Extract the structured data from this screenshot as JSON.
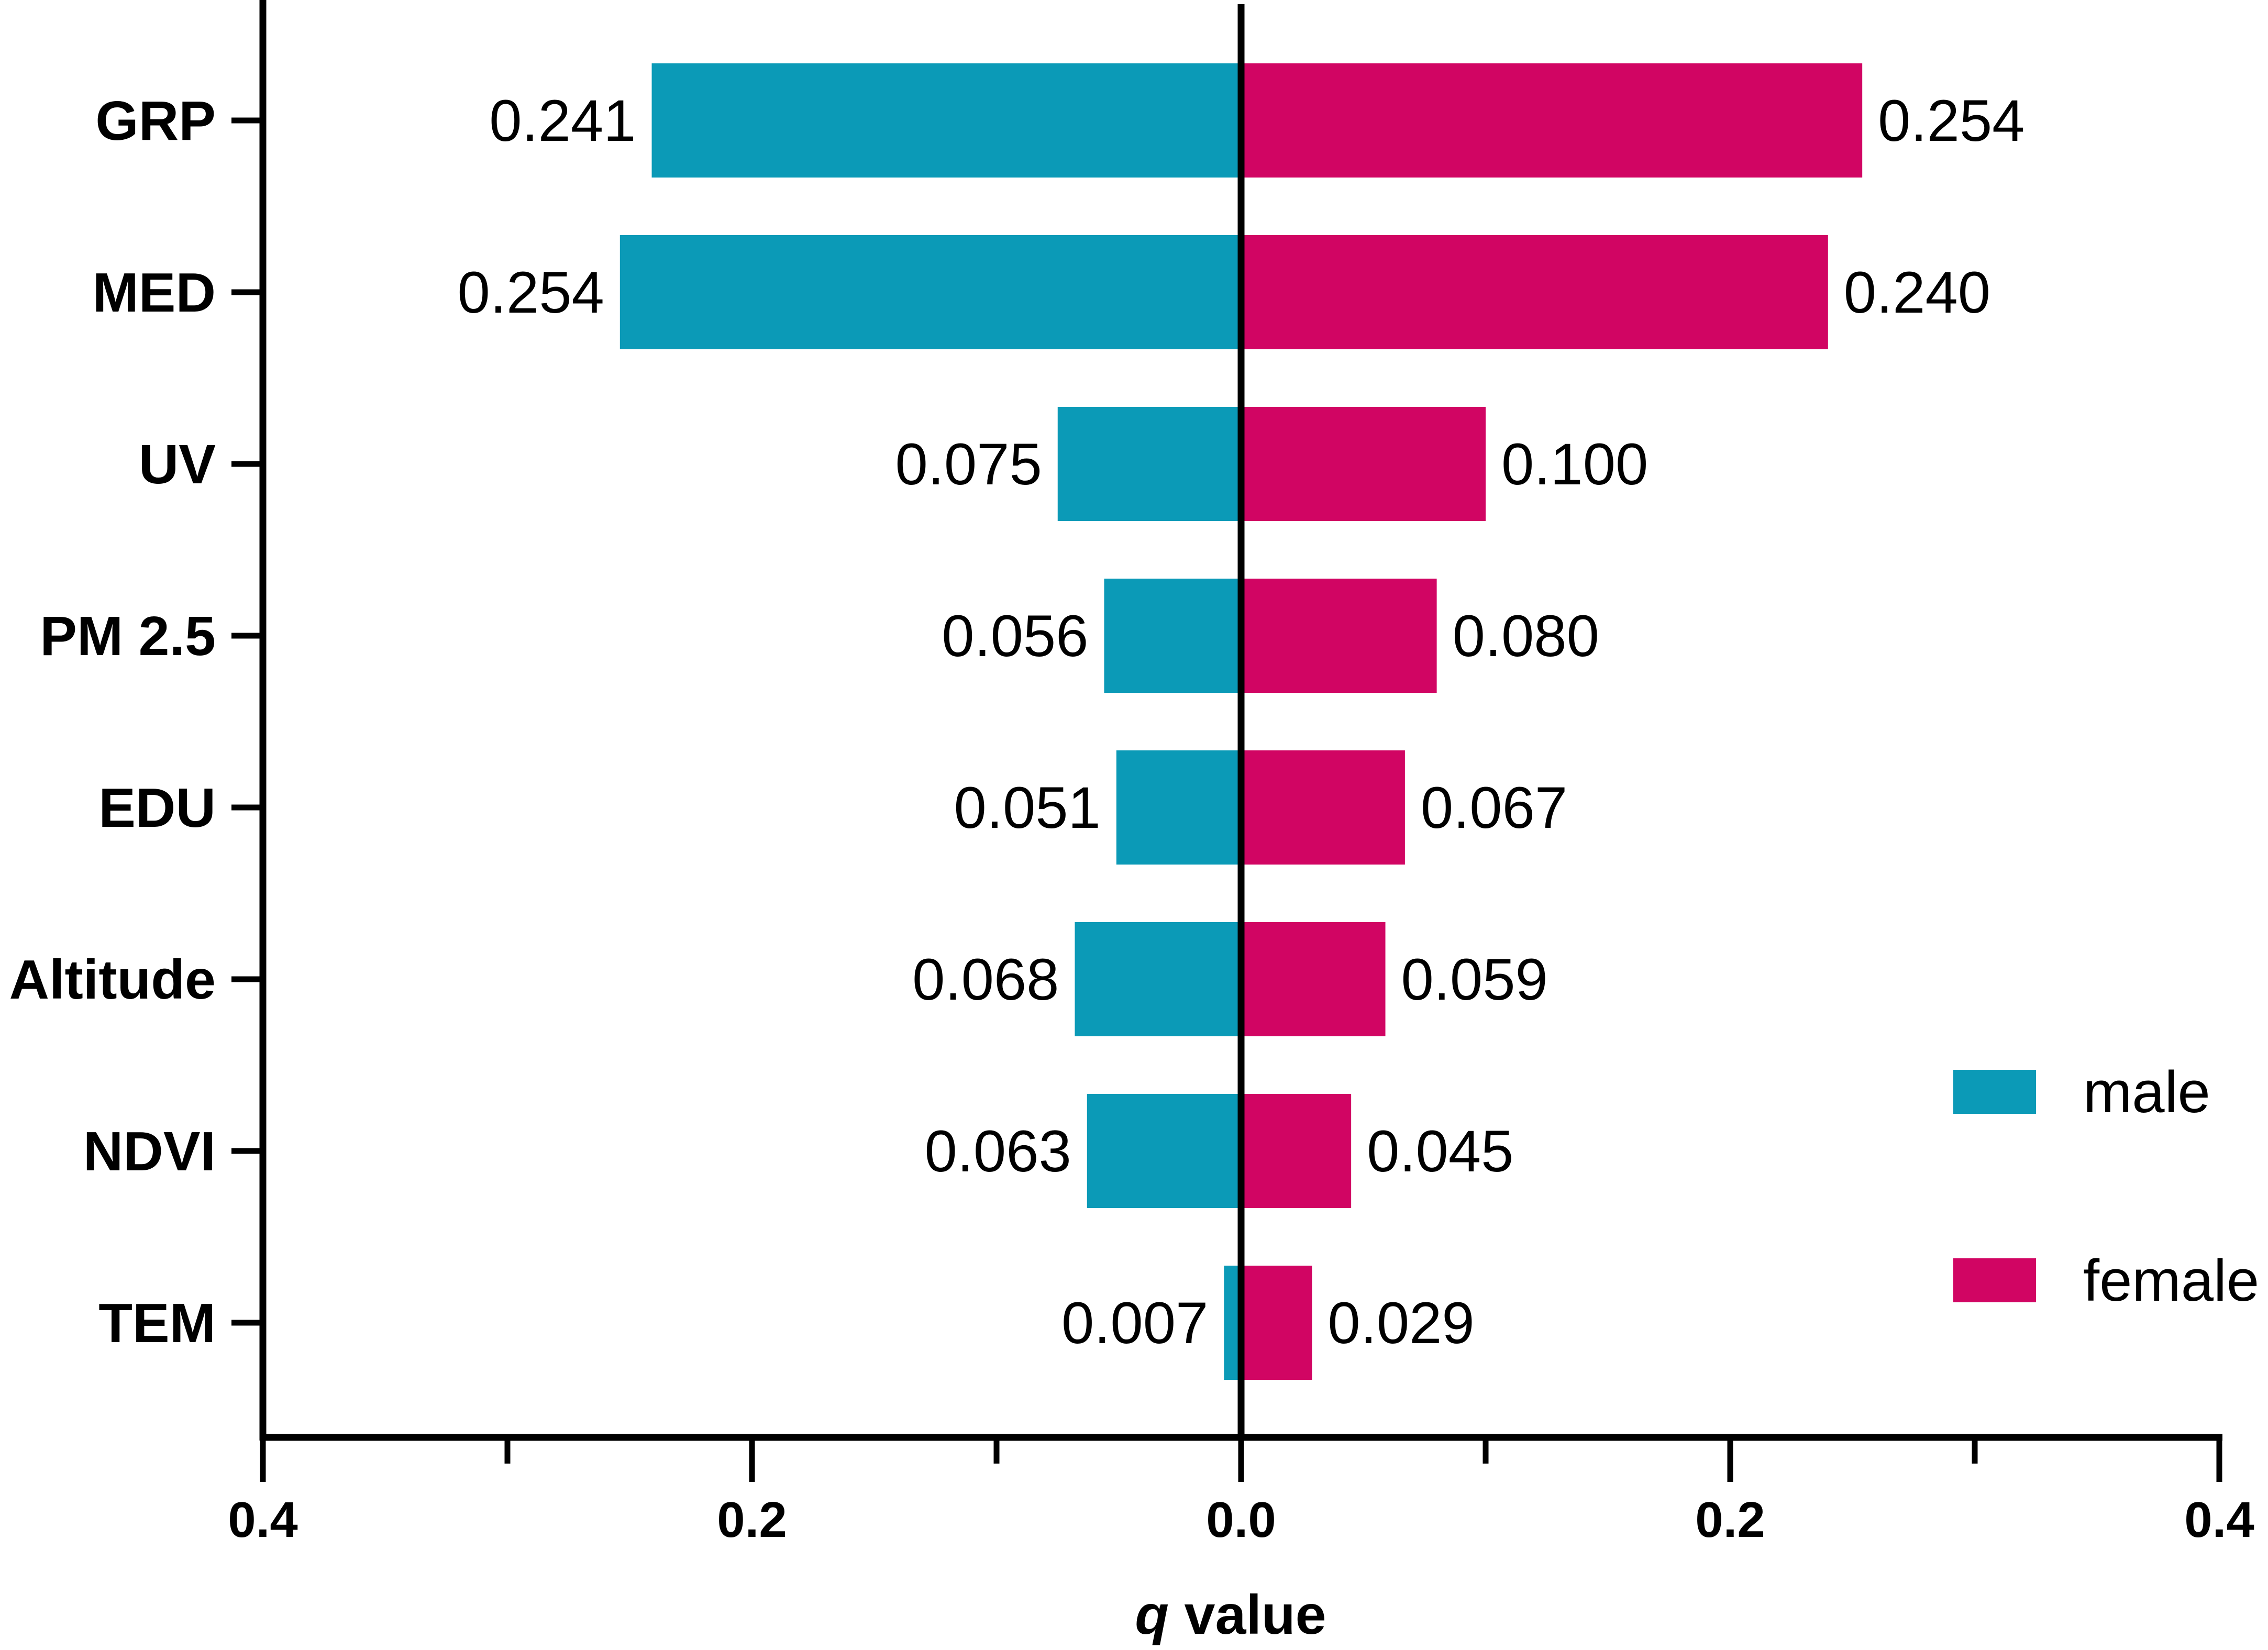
{
  "chart_data": {
    "type": "bar",
    "orientation": "horizontal-diverging",
    "title": "",
    "xlabel_italic": "q",
    "xlabel_rest": " value",
    "ylabel": "",
    "xlim": [
      -0.4,
      0.4
    ],
    "x_ticks": [
      -0.4,
      -0.3,
      -0.2,
      -0.1,
      0.0,
      0.1,
      0.2,
      0.3,
      0.4
    ],
    "x_tick_labels": [
      "0.4",
      "0.2",
      "0.0",
      "0.2",
      "0.4"
    ],
    "x_tick_label_values": [
      -0.4,
      -0.2,
      0.0,
      0.2,
      0.4
    ],
    "categories": [
      "GRP",
      "MED",
      "UV",
      "PM 2.5",
      "EDU",
      "Altitude",
      "NDVI",
      "TEM"
    ],
    "series": [
      {
        "name": "male",
        "side": "left",
        "color": "#0b9ab7",
        "values": [
          0.241,
          0.254,
          0.075,
          0.056,
          0.051,
          0.068,
          0.063,
          0.007
        ],
        "labels": [
          "0.241",
          "0.254",
          "0.075",
          "0.056",
          "0.051",
          "0.068",
          "0.063",
          "0.007"
        ]
      },
      {
        "name": "female",
        "side": "right",
        "color": "#d10563",
        "values": [
          0.254,
          0.24,
          0.1,
          0.08,
          0.067,
          0.059,
          0.045,
          0.029
        ],
        "labels": [
          "0.254",
          "0.240",
          "0.100",
          "0.080",
          "0.067",
          "0.059",
          "0.045",
          "0.029"
        ]
      }
    ],
    "legend": {
      "placement": "bottom-right",
      "entries": [
        "male",
        "female"
      ]
    }
  }
}
